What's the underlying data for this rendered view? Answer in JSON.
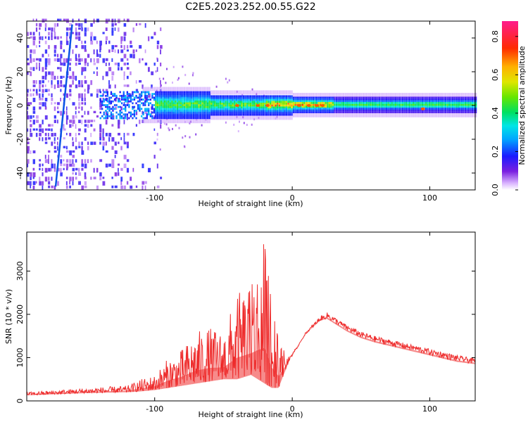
{
  "title": "C2E5.2023.252.00.55.G22",
  "colors": {
    "snr_line": "#ee2c2c",
    "axis": "#000000"
  },
  "chart_data": [
    {
      "type": "heatmap",
      "xlabel": "Height of straight line (km)",
      "ylabel": "Frequency (Hz)",
      "xlim": [
        -193,
        133
      ],
      "ylim": [
        -50,
        50
      ],
      "xticks": [
        -100,
        0,
        100
      ],
      "yticks": [
        -40,
        -20,
        0,
        20,
        40
      ],
      "colorbar": {
        "label": "Normalized spectral amplitude",
        "range": [
          0,
          0.88
        ],
        "ticks": [
          0.0,
          0.2,
          0.4,
          0.6,
          0.8
        ],
        "colormap": "rainbow"
      },
      "description_points": {
        "ridge_center_hz": 0,
        "noise_region_x": [
          -193,
          -100
        ],
        "strong_band_x": [
          -130,
          133
        ],
        "peak_x": [
          -20,
          30
        ],
        "diagonal_streak": {
          "x": [
            -172,
            -160
          ],
          "y": [
            -48,
            48
          ]
        }
      }
    },
    {
      "type": "line",
      "xlabel": "Height of straight line (km)",
      "ylabel": "SNR (10 * v/v)",
      "xlim": [
        -193,
        133
      ],
      "ylim": [
        0,
        3900
      ],
      "xticks": [
        -100,
        0,
        100
      ],
      "yticks": [
        0,
        1000,
        2000,
        3000
      ],
      "series": [
        {
          "envelope_x": [
            -193,
            -150,
            -120,
            -110,
            -100,
            -90,
            -80,
            -70,
            -60,
            -50,
            -40,
            -30,
            -25,
            -20,
            -15,
            -10,
            -5,
            0,
            10,
            20,
            25,
            30,
            40,
            50,
            60,
            80,
            100,
            120,
            133
          ],
          "envelope_y": [
            200,
            300,
            350,
            500,
            600,
            1000,
            1200,
            1600,
            1700,
            1600,
            2500,
            2600,
            3200,
            3700,
            2200,
            1400,
            1100,
            1000,
            1600,
            1950,
            2050,
            1950,
            1750,
            1600,
            1500,
            1350,
            1200,
            1050,
            980
          ],
          "min_y": [
            130,
            180,
            200,
            220,
            250,
            300,
            350,
            400,
            450,
            500,
            500,
            600,
            500,
            400,
            300,
            300,
            700,
            1100,
            1550,
            1850,
            1900,
            1800,
            1600,
            1450,
            1350,
            1200,
            1050,
            900,
            850
          ]
        }
      ]
    }
  ]
}
